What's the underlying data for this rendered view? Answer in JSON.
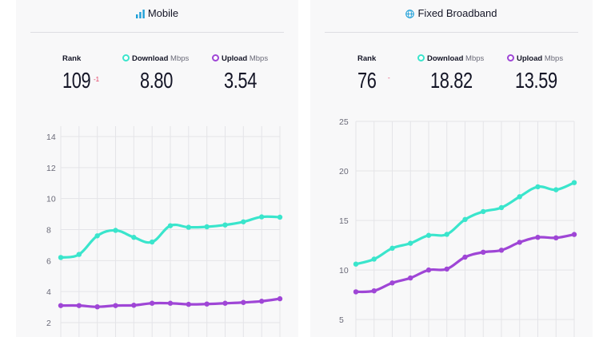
{
  "colors": {
    "download": "#3ae5cc",
    "upload": "#9f46d6",
    "grid": "#e4e4e8",
    "bg": "#f8f8f9"
  },
  "mobile": {
    "title": "Mobile",
    "icon": "signal-bars-icon",
    "rank_label": "Rank",
    "rank": "109",
    "rank_change": "-1",
    "download_label": "Download",
    "download_unit": "Mbps",
    "download": "8.80",
    "upload_label": "Upload",
    "upload_unit": "Mbps",
    "upload": "3.54"
  },
  "fixed": {
    "title": "Fixed Broadband",
    "icon": "globe-icon",
    "rank_label": "Rank",
    "rank": "76",
    "rank_change": "-",
    "download_label": "Download",
    "download_unit": "Mbps",
    "download": "18.82",
    "upload_label": "Upload",
    "upload_unit": "Mbps",
    "upload": "13.59"
  },
  "chart_data": [
    {
      "type": "line",
      "title": "",
      "ylim": [
        2,
        14
      ],
      "yticks": [
        2,
        4,
        6,
        8,
        10,
        12,
        14
      ],
      "grid": true,
      "x": [
        1,
        2,
        3,
        4,
        5,
        6,
        7,
        8,
        9,
        10,
        11,
        12,
        13
      ],
      "series": [
        {
          "name": "Download",
          "values": [
            6.2,
            6.4,
            7.6,
            7.95,
            7.5,
            7.2,
            8.25,
            8.15,
            8.18,
            8.3,
            8.5,
            8.82,
            8.8
          ]
        },
        {
          "name": "Upload",
          "values": [
            3.1,
            3.1,
            3.02,
            3.1,
            3.12,
            3.25,
            3.25,
            3.18,
            3.2,
            3.25,
            3.3,
            3.38,
            3.54
          ]
        }
      ]
    },
    {
      "type": "line",
      "title": "",
      "ylim": [
        3,
        25
      ],
      "yticks": [
        5,
        10,
        15,
        20,
        25
      ],
      "grid": true,
      "x": [
        1,
        2,
        3,
        4,
        5,
        6,
        7,
        8,
        9,
        10,
        11,
        12,
        13
      ],
      "series": [
        {
          "name": "Download",
          "values": [
            10.6,
            11.1,
            12.2,
            12.7,
            13.5,
            13.6,
            15.1,
            15.9,
            16.3,
            17.4,
            18.4,
            18.1,
            18.82
          ]
        },
        {
          "name": "Upload",
          "values": [
            7.8,
            7.9,
            8.7,
            9.2,
            10.0,
            10.1,
            11.3,
            11.8,
            12.0,
            12.8,
            13.3,
            13.25,
            13.59
          ]
        }
      ]
    }
  ]
}
